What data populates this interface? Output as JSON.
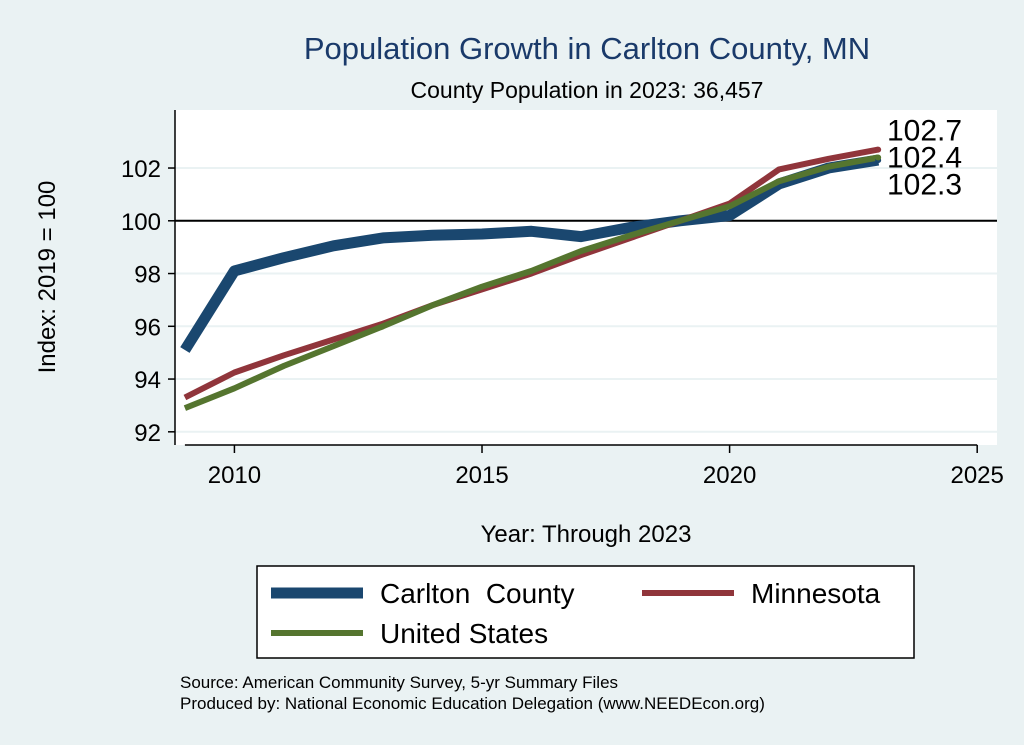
{
  "chart_data": {
    "type": "line",
    "title": "Population Growth in Carlton County, MN",
    "subtitle": "County Population in 2023: 36,457",
    "xlabel": "Year: Through 2023",
    "ylabel": "Index: 2019 = 100",
    "xlim": [
      2008.8,
      2025.4
    ],
    "ylim": [
      91.5,
      104.2
    ],
    "xticks": [
      2010,
      2015,
      2020,
      2025
    ],
    "yticks": [
      92,
      94,
      96,
      98,
      100,
      102
    ],
    "reference_line": 100,
    "x": [
      2009,
      2010,
      2011,
      2012,
      2013,
      2014,
      2015,
      2016,
      2017,
      2018,
      2019,
      2020,
      2021,
      2022,
      2023
    ],
    "series": [
      {
        "name": "Carlton  County",
        "color": "#1a476f",
        "values": [
          95.1,
          98.1,
          98.6,
          99.05,
          99.35,
          99.45,
          99.5,
          99.6,
          99.4,
          99.75,
          100.0,
          100.2,
          101.4,
          102.0,
          102.3
        ],
        "end_label": "102.3"
      },
      {
        "name": "Minnesota",
        "color": "#90353b",
        "values": [
          93.3,
          94.25,
          94.9,
          95.5,
          96.1,
          96.8,
          97.4,
          98.0,
          98.7,
          99.35,
          100.0,
          100.65,
          101.95,
          102.35,
          102.7
        ],
        "end_label": "102.7"
      },
      {
        "name": "United States",
        "color": "#55752f",
        "values": [
          92.9,
          93.65,
          94.5,
          95.25,
          96.0,
          96.8,
          97.5,
          98.1,
          98.85,
          99.45,
          100.0,
          100.55,
          101.5,
          102.05,
          102.4
        ],
        "end_label": "102.4"
      }
    ],
    "legend_position": "bottom"
  },
  "notes": {
    "source": "Source: American Community Survey, 5-yr Summary Files",
    "produced_by": "Produced by: National Economic Education Delegation (www.NEEDEcon.org)"
  }
}
